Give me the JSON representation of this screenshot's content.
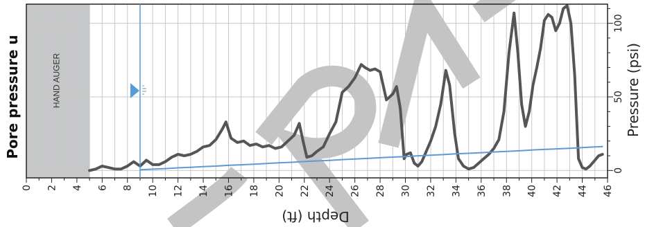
{
  "chart_data": {
    "type": "line",
    "title": "",
    "xlabel": "Depth (ft)",
    "ylabel_left": "Pore pressure u",
    "ylabel_right": "Pressure (psi)",
    "xlim": [
      0,
      46
    ],
    "ylim": [
      -5,
      113
    ],
    "x_ticks": [
      0,
      2,
      4,
      6,
      8,
      10,
      12,
      14,
      16,
      18,
      20,
      22,
      24,
      26,
      28,
      30,
      32,
      34,
      36,
      38,
      40,
      42,
      44,
      46
    ],
    "y_ticks": [
      0,
      50,
      100
    ],
    "grid": true,
    "shaded_region": {
      "x_start": 0,
      "x_end": 5,
      "label": "HAND AUGER",
      "color": "#c6c7c9"
    },
    "water_table": {
      "depth": 9,
      "color": "#5b9bd5"
    },
    "watermark": "DRAFT",
    "series": [
      {
        "name": "",
        "color": "#555555",
        "x": [
          5.0,
          5.5,
          6.0,
          6.5,
          7.0,
          7.5,
          8.0,
          8.5,
          9.0,
          9.5,
          10.0,
          10.5,
          11.0,
          11.5,
          12.0,
          12.5,
          13.0,
          13.5,
          14.0,
          14.5,
          15.0,
          15.5,
          15.8,
          16.2,
          16.7,
          17.2,
          17.7,
          18.2,
          18.7,
          19.2,
          19.7,
          20.2,
          20.7,
          21.2,
          21.6,
          21.9,
          22.2,
          22.6,
          23.0,
          23.5,
          24.0,
          24.5,
          25.0,
          25.5,
          26.0,
          26.5,
          26.8,
          27.2,
          27.6,
          28.0,
          28.5,
          29.0,
          29.3,
          29.6,
          29.9,
          30.1,
          30.4,
          30.7,
          31.0,
          31.3,
          31.6,
          32.0,
          32.4,
          32.8,
          33.2,
          33.5,
          33.9,
          34.2,
          34.6,
          35.0,
          35.4,
          35.8,
          36.2,
          36.6,
          37.0,
          37.4,
          37.8,
          38.2,
          38.6,
          38.9,
          39.2,
          39.5,
          39.8,
          40.1,
          40.4,
          40.7,
          41.0,
          41.3,
          41.6,
          41.9,
          42.2,
          42.5,
          42.8,
          43.1,
          43.4,
          43.7,
          44.0,
          44.3,
          44.6,
          45.0,
          45.3,
          45.6
        ],
        "y": [
          0,
          1,
          3,
          2,
          1,
          1,
          3,
          6,
          3,
          7,
          4,
          4,
          6,
          9,
          11,
          10,
          11,
          13,
          16,
          17,
          21,
          28,
          33,
          22,
          19,
          20,
          17,
          18,
          16,
          17,
          15,
          16,
          20,
          24,
          32,
          20,
          9,
          10,
          13,
          16,
          25,
          33,
          53,
          57,
          63,
          72,
          70,
          68,
          69,
          67,
          48,
          52,
          57,
          42,
          8,
          11,
          12,
          5,
          3,
          6,
          12,
          20,
          30,
          45,
          68,
          58,
          25,
          8,
          3,
          1,
          2,
          5,
          8,
          11,
          15,
          21,
          40,
          80,
          107,
          80,
          45,
          30,
          40,
          58,
          70,
          83,
          102,
          106,
          104,
          95,
          100,
          110,
          112,
          100,
          65,
          8,
          2,
          1,
          3,
          7,
          10,
          11
        ]
      },
      {
        "name": "",
        "color": "#5b9bd5",
        "x": [
          9,
          10,
          11,
          12,
          13,
          14,
          15,
          16,
          17,
          18,
          19,
          20,
          21,
          22,
          23,
          24,
          25,
          26,
          27,
          28,
          29,
          30,
          31,
          32,
          33,
          34,
          35,
          36,
          37,
          38,
          39,
          40,
          41,
          42,
          43,
          44,
          45,
          45.6
        ],
        "y": [
          0.5,
          0.9,
          1.3,
          1.8,
          2.2,
          2.6,
          3.0,
          3.5,
          3.9,
          4.3,
          4.8,
          5.2,
          5.6,
          6.1,
          6.5,
          6.9,
          7.4,
          7.8,
          8.2,
          8.7,
          9.1,
          9.5,
          10.0,
          10.4,
          10.8,
          11.3,
          11.7,
          12.1,
          12.6,
          13.0,
          13.4,
          13.9,
          14.3,
          14.7,
          15.1,
          15.6,
          16.0,
          16.3
        ]
      }
    ]
  }
}
